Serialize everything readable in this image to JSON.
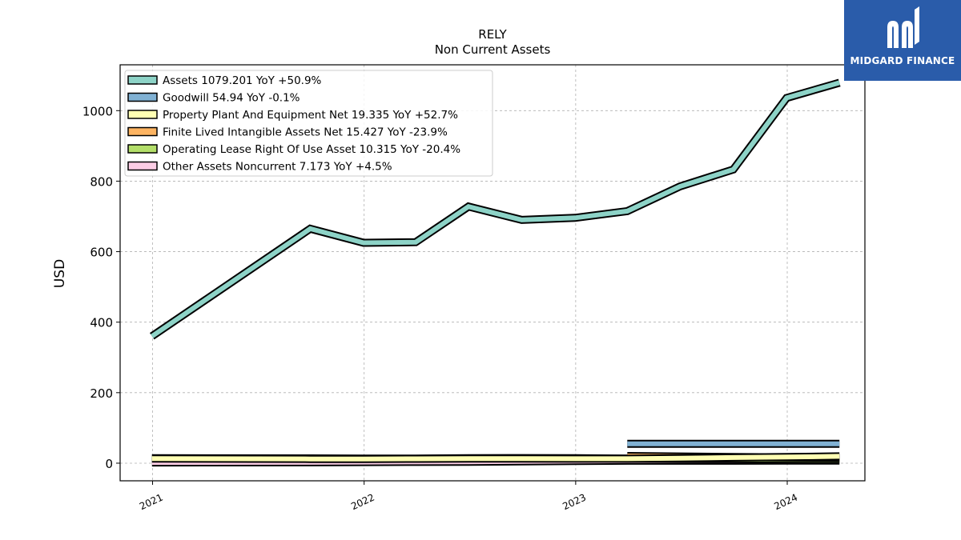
{
  "chart_data": {
    "type": "line",
    "title": "RELY",
    "subtitle": "Non Current  Assets",
    "ylabel": "USD",
    "ylim": [
      -50,
      1130
    ],
    "yticks": [
      0,
      200,
      400,
      600,
      800,
      1000
    ],
    "xlim": [
      "2020-11-06",
      "2024-05-14"
    ],
    "xticks": [
      "2021",
      "2022",
      "2023",
      "2024"
    ],
    "grid": true,
    "legend_position": "top-left",
    "series": [
      {
        "name": "Assets  1079.201 YoY +50.9%",
        "color": "#8dd3c7",
        "points": [
          [
            "2020-12-31",
            360
          ],
          [
            "2021-09-30",
            665
          ],
          [
            "2021-12-31",
            625
          ],
          [
            "2022-03-31",
            627
          ],
          [
            "2022-06-30",
            728
          ],
          [
            "2022-09-30",
            690
          ],
          [
            "2022-12-31",
            696
          ],
          [
            "2023-03-31",
            715
          ],
          [
            "2023-06-30",
            785
          ],
          [
            "2023-09-30",
            833
          ],
          [
            "2023-12-31",
            1036
          ],
          [
            "2024-03-31",
            1079.201
          ]
        ]
      },
      {
        "name": "Goodwill  54.94 YoY -0.1%",
        "color": "#80b1d3",
        "points": [
          [
            "2023-03-31",
            55
          ],
          [
            "2023-06-30",
            55
          ],
          [
            "2023-09-30",
            55
          ],
          [
            "2023-12-31",
            54.9
          ],
          [
            "2024-03-31",
            54.94
          ]
        ]
      },
      {
        "name": "Property Plant And Equipment Net  19.335 YoY +52.7%",
        "color": "#ffffb3",
        "points": [
          [
            "2020-12-31",
            13
          ],
          [
            "2021-09-30",
            12
          ],
          [
            "2021-12-31",
            12
          ],
          [
            "2022-03-31",
            12.5
          ],
          [
            "2022-06-30",
            13
          ],
          [
            "2022-09-30",
            13
          ],
          [
            "2022-12-31",
            12.7
          ],
          [
            "2023-03-31",
            12.7
          ],
          [
            "2023-06-30",
            14
          ],
          [
            "2023-09-30",
            16
          ],
          [
            "2023-12-31",
            17.5
          ],
          [
            "2024-03-31",
            19.335
          ]
        ]
      },
      {
        "name": "Finite Lived Intangible Assets Net  15.427 YoY -23.9%",
        "color": "#fdb462",
        "points": [
          [
            "2023-03-31",
            20.3
          ],
          [
            "2023-06-30",
            19
          ],
          [
            "2023-09-30",
            17.7
          ],
          [
            "2023-12-31",
            16.5
          ],
          [
            "2024-03-31",
            15.427
          ]
        ]
      },
      {
        "name": "Operating Lease Right Of Use Asset  10.315 YoY -20.4%",
        "color": "#b3de69",
        "points": [
          [
            "2020-12-31",
            14
          ],
          [
            "2021-09-30",
            13.5
          ],
          [
            "2021-12-31",
            13
          ],
          [
            "2022-03-31",
            13
          ],
          [
            "2022-06-30",
            14
          ],
          [
            "2022-09-30",
            14.5
          ],
          [
            "2022-12-31",
            14
          ],
          [
            "2023-03-31",
            13
          ],
          [
            "2023-06-30",
            12
          ],
          [
            "2023-09-30",
            11.5
          ],
          [
            "2023-12-31",
            11
          ],
          [
            "2024-03-31",
            10.315
          ]
        ]
      },
      {
        "name": "Other Assets Noncurrent  7.173 YoY +4.5%",
        "color": "#fccde5",
        "points": [
          [
            "2020-12-31",
            2
          ],
          [
            "2021-09-30",
            2.5
          ],
          [
            "2021-12-31",
            3
          ],
          [
            "2022-03-31",
            3.5
          ],
          [
            "2022-06-30",
            4
          ],
          [
            "2022-09-30",
            5
          ],
          [
            "2022-12-31",
            6
          ],
          [
            "2023-03-31",
            6.9
          ],
          [
            "2023-06-30",
            6.9
          ],
          [
            "2023-09-30",
            7
          ],
          [
            "2023-12-31",
            7.1
          ],
          [
            "2024-03-31",
            7.173
          ]
        ]
      }
    ]
  },
  "logo": {
    "text": "MIDGARD FINANCE",
    "background": "#2a5caa"
  }
}
